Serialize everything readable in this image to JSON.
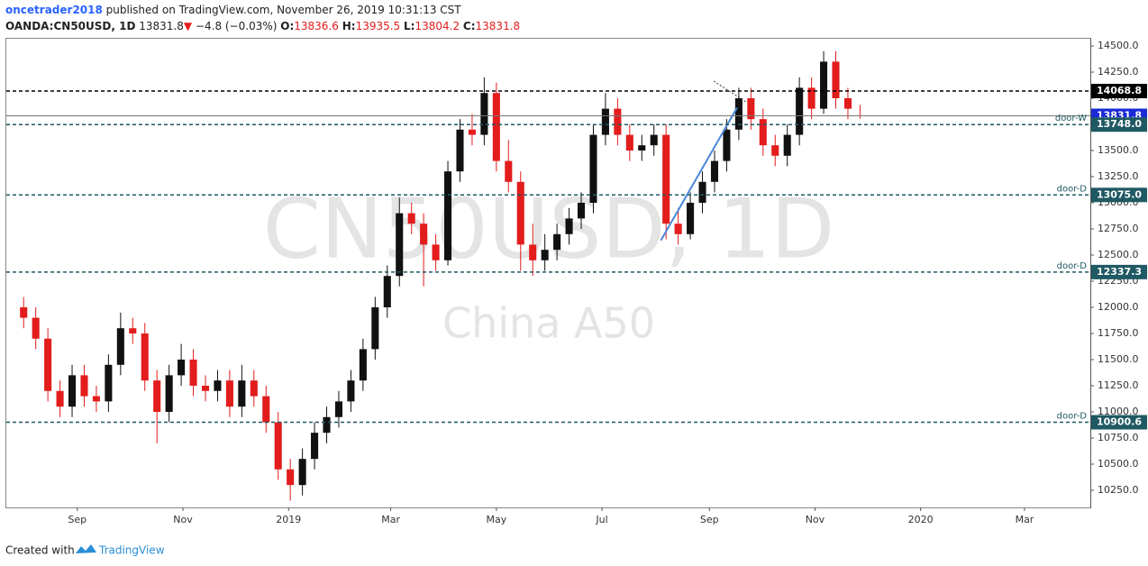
{
  "header": {
    "author": "oncetrader2018",
    "published": "published on TradingView.com, November 26, 2019 10:31:13 CST",
    "symbol": "OANDA:CN50USD, 1D",
    "last": "13831.8",
    "change": "−4.8 (−0.03%)",
    "o_label": "O:",
    "open": "13836.6",
    "h_label": "H:",
    "high": "13935.5",
    "l_label": "L:",
    "low": "13804.2",
    "c_label": "C:",
    "close": "13831.8"
  },
  "footer": {
    "created": "Created with",
    "brand": "TradingView"
  },
  "chart_data": {
    "type": "candlestick",
    "watermark": "CN50USD, 1D",
    "watermark_sub": "China A50",
    "up_color": "#111111",
    "down_color": "#e31c1c",
    "x": [
      0,
      7,
      14,
      21,
      28,
      35,
      42,
      49,
      56,
      63,
      70,
      77,
      84,
      91,
      98,
      105,
      112,
      119,
      126,
      133,
      140,
      147,
      154,
      161,
      168,
      175,
      182,
      189,
      196,
      203,
      210,
      217,
      224,
      231,
      238,
      245,
      252,
      259,
      266,
      273,
      280,
      287,
      294,
      301,
      308,
      315,
      322,
      329,
      336,
      343,
      350,
      357,
      364,
      371,
      378,
      385,
      392,
      399,
      406,
      413,
      420,
      427,
      434,
      441,
      448,
      455,
      462,
      469,
      476,
      483
    ],
    "open": [
      12000,
      11900,
      11700,
      11200,
      11050,
      11350,
      11150,
      11100,
      11450,
      11800,
      11750,
      11300,
      11000,
      11350,
      11500,
      11250,
      11200,
      11300,
      11050,
      11300,
      11150,
      10900,
      10450,
      10300,
      10550,
      10800,
      10950,
      11100,
      11300,
      11600,
      12000,
      12300,
      12900,
      12800,
      12600,
      12450,
      13300,
      13700,
      13650,
      14050,
      13400,
      13200,
      12600,
      12450,
      12550,
      12700,
      12850,
      13000,
      13650,
      13900,
      13650,
      13500,
      13550,
      13650,
      12800,
      12700,
      13000,
      13200,
      13400,
      13700,
      14000,
      13800,
      13550,
      13450,
      13650,
      14100,
      13900,
      14350,
      14000,
      13836.6
    ],
    "high": [
      12100,
      12000,
      11800,
      11300,
      11450,
      11450,
      11250,
      11550,
      11950,
      11900,
      11850,
      11400,
      11450,
      11650,
      11600,
      11350,
      11400,
      11400,
      11450,
      11400,
      11250,
      11000,
      10550,
      10650,
      10900,
      11050,
      11200,
      11400,
      11700,
      12100,
      12400,
      13050,
      13000,
      12900,
      12700,
      13400,
      13800,
      13850,
      14200,
      14150,
      13600,
      13300,
      12800,
      12700,
      12800,
      12950,
      13100,
      13750,
      14050,
      14000,
      13750,
      13650,
      13750,
      13750,
      12950,
      13100,
      13300,
      13500,
      13800,
      14100,
      14100,
      13900,
      13650,
      13750,
      14200,
      14200,
      14450,
      14450,
      14100,
      13935.5
    ],
    "low": [
      11800,
      11600,
      11100,
      10950,
      10950,
      11050,
      11000,
      11000,
      11350,
      11650,
      11200,
      10700,
      10900,
      11250,
      11150,
      11100,
      11100,
      10950,
      10950,
      11050,
      10800,
      10350,
      10150,
      10200,
      10450,
      10700,
      10850,
      11000,
      11200,
      11500,
      11900,
      12200,
      12700,
      12200,
      12350,
      12400,
      13200,
      13550,
      13550,
      13300,
      13100,
      12350,
      12300,
      12350,
      12450,
      12600,
      12750,
      12900,
      13550,
      13550,
      13400,
      13400,
      13450,
      12650,
      12600,
      12650,
      12900,
      13100,
      13300,
      13600,
      13700,
      13450,
      13350,
      13350,
      13550,
      13800,
      13850,
      13900,
      13800,
      13804.2
    ],
    "close": [
      11900,
      11700,
      11200,
      11050,
      11350,
      11150,
      11100,
      11450,
      11800,
      11750,
      11300,
      11000,
      11350,
      11500,
      11250,
      11200,
      11300,
      11050,
      11300,
      11150,
      10900,
      10450,
      10300,
      10550,
      10800,
      10950,
      11100,
      11300,
      11600,
      12000,
      12300,
      12900,
      12800,
      12600,
      12450,
      13300,
      13700,
      13650,
      14050,
      13400,
      13200,
      12600,
      12450,
      12550,
      12700,
      12850,
      13000,
      13650,
      13900,
      13650,
      13500,
      13550,
      13650,
      12800,
      12700,
      13000,
      13200,
      13400,
      13700,
      14000,
      13800,
      13550,
      13450,
      13650,
      14100,
      13900,
      14350,
      14000,
      13900,
      13831.8
    ],
    "levels": [
      {
        "value": 14068.8,
        "color": "#000000",
        "dash": true
      },
      {
        "value": 13831.8,
        "color": "#1a2bd6",
        "dash": false
      },
      {
        "value": 13748,
        "label": "13748.0",
        "name": "door-W",
        "color": "#1f5963",
        "dash": true
      },
      {
        "value": 13075,
        "label": "13075.0",
        "name": "door-D",
        "color": "#1f5963",
        "dash": true
      },
      {
        "value": 12337.3,
        "name": "door-D",
        "color": "#1f5963",
        "dash": true
      },
      {
        "value": 10900.6,
        "name": "door-D",
        "color": "#1f5963",
        "dash": true
      }
    ],
    "trendlines": [
      {
        "x": [
          368,
          412
        ],
        "y": [
          12640,
          13910
        ],
        "color": "#4a86d8",
        "dash": false
      },
      {
        "x": [
          398.6,
          417
        ],
        "y": [
          14164,
          13966
        ],
        "color": "#333333",
        "dash": true
      }
    ],
    "xlim": [
      -10,
      616
    ],
    "xticks": [
      {
        "value": 31,
        "label": "Sep"
      },
      {
        "value": 92,
        "label": "Nov"
      },
      {
        "value": 153,
        "label": "2019"
      },
      {
        "value": 212,
        "label": "Mar"
      },
      {
        "value": 273,
        "label": "May"
      },
      {
        "value": 334,
        "label": "Jul"
      },
      {
        "value": 396,
        "label": "Sep"
      },
      {
        "value": 457,
        "label": "Nov"
      },
      {
        "value": 518,
        "label": "2020"
      },
      {
        "value": 578,
        "label": "Mar"
      }
    ],
    "ylim": [
      10086,
      14569
    ],
    "yticks": [
      {
        "value": 10250,
        "label": "10250.0"
      },
      {
        "value": 10500,
        "label": "10500.0"
      },
      {
        "value": 10750,
        "label": "10750.0"
      },
      {
        "value": 11000,
        "label": "11000.0"
      },
      {
        "value": 11250,
        "label": "11250.0"
      },
      {
        "value": 11500,
        "label": "11500.0"
      },
      {
        "value": 11750,
        "label": "11750.0"
      },
      {
        "value": 12000,
        "label": "12000.0"
      },
      {
        "value": 12250,
        "label": "12250.0"
      },
      {
        "value": 12500,
        "label": "12500.0"
      },
      {
        "value": 12750,
        "label": "12750.0"
      },
      {
        "value": 13000,
        "label": "13000.0"
      },
      {
        "value": 13250,
        "label": "13250.0"
      },
      {
        "value": 13500,
        "label": "13500.0"
      },
      {
        "value": 13750,
        "label": "13750.0"
      },
      {
        "value": 14000,
        "label": "14000.0"
      },
      {
        "value": 14250,
        "label": "14250.0"
      },
      {
        "value": 14500,
        "label": "14500.0"
      }
    ]
  }
}
